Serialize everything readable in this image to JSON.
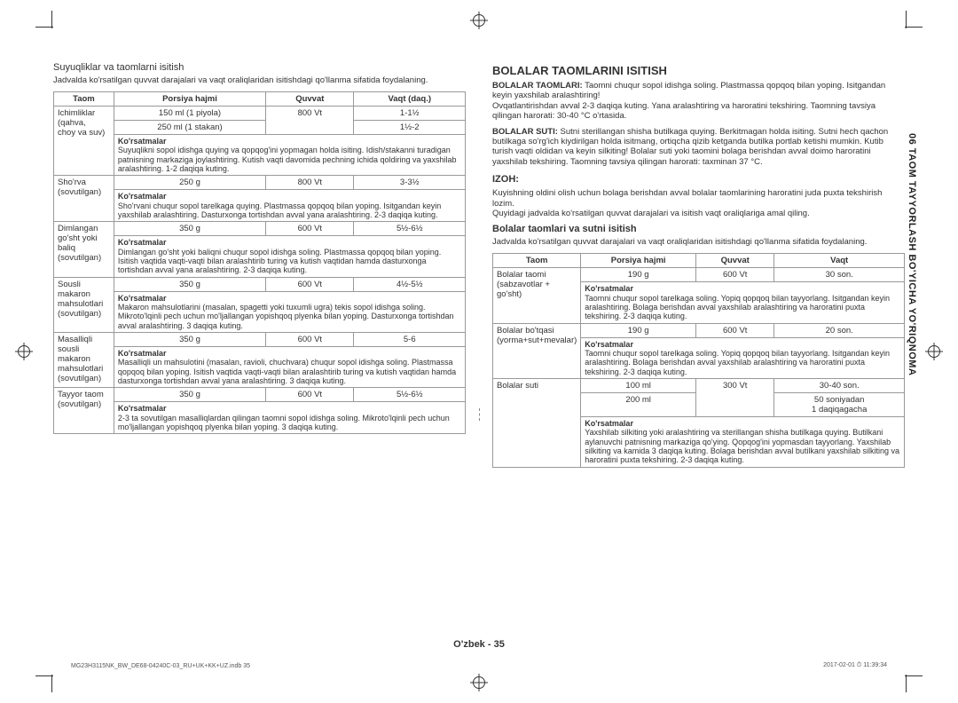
{
  "cropmarks": true,
  "left": {
    "title": "Suyuqliklar va taomlarni isitish",
    "intro": "Jadvalda ko'rsatilgan quvvat darajalari va vaqt oraliqlaridan isitishdagi qo'llanma sifatida foydalaning.",
    "headers": [
      "Taom",
      "Porsiya hajmi",
      "Quvvat",
      "Vaqt (daq.)"
    ],
    "rows": [
      {
        "name": "Ichimliklar (qahva,\nchoy va suv)",
        "portions": [
          "150 ml (1 piyola)",
          "250 ml (1 stakan)"
        ],
        "power": "800 Vt",
        "time": [
          "1-1½",
          "1½-2"
        ],
        "inst": "Suyuqlikni sopol idishga quying va qopqog'ini yopmagan holda isiting. Idish/stakanni turadigan patnisning markaziga joylashtiring. Kutish vaqti davomida pechning ichida qoldiring va yaxshilab aralashtiring. 1-2 daqiqa kuting."
      },
      {
        "name": "Sho'rva\n(sovutilgan)",
        "portions": [
          "250 g"
        ],
        "power": "800 Vt",
        "time": [
          "3-3½"
        ],
        "inst": "Sho'rvani chuqur sopol tarelkaga quying. Plastmassa qopqoq bilan yoping. Isitgandan keyin yaxshilab aralashtiring. Dasturxonga tortishdan avval yana aralashtiring. 2-3 daqiqa kuting."
      },
      {
        "name": "Dimlangan\ngo'sht yoki baliq\n(sovutilgan)",
        "portions": [
          "350 g"
        ],
        "power": "600 Vt",
        "time": [
          "5½-6½"
        ],
        "inst": "Dimlangan go'sht yoki baliqni chuqur sopol idishga soling. Plastmassa qopqoq bilan yoping. Isitish vaqtida vaqti-vaqti bilan aralashtirib turing va kutish vaqtidan hamda dasturxonga tortishdan avval yana aralashtiring. 2-3 daqiqa kuting."
      },
      {
        "name": "Sousli makaron\nmahsulotlari\n(sovutilgan)",
        "portions": [
          "350 g"
        ],
        "power": "600 Vt",
        "time": [
          "4½-5½"
        ],
        "inst": "Makaron mahsulotlarini (masalan, spagetti yoki tuxumli ugra) tekis sopol idishga soling. Mikroto'lqinli pech uchun mo'ljallangan yopishqoq plyenka bilan yoping. Dasturxonga tortishdan avval aralashtiring. 3 daqiqa kuting."
      },
      {
        "name": "Masalliqli\nsousli makaron\nmahsulotlari\n(sovutilgan)",
        "portions": [
          "350 g"
        ],
        "power": "600 Vt",
        "time": [
          "5-6"
        ],
        "inst": "Masalliqli un mahsulotini (masalan, ravioli, chuchvara) chuqur sopol idishga soling. Plastmassa qopqoq bilan yoping. Isitish vaqtida vaqti-vaqti bilan aralashtirib turing va kutish vaqtidan hamda dasturxonga tortishdan avval yana aralashtiring. 3 daqiqa kuting."
      },
      {
        "name": "Tayyor taom\n(sovutilgan)",
        "portions": [
          "350 g"
        ],
        "power": "600 Vt",
        "time": [
          "5½-6½"
        ],
        "inst": "2-3 ta sovutilgan masalliqlardan qilingan taomni sopol idishga soling. Mikroto'lqinli pech uchun mo'ljallangan yopishqoq plyenka bilan yoping. 3 daqiqa kuting."
      }
    ],
    "inst_label": "Ko'rsatmalar"
  },
  "right": {
    "heading": "BOLALAR TAOMLARINI ISITISH",
    "para1_label": "BOLALAR TAOMLARI:",
    "para1": " Taomni chuqur sopol idishga soling. Plastmassa qopqoq bilan yoping. Isitgandan keyin yaxshilab aralashtiring!\nOvqatlantirishdan avval 2-3 daqiqa kuting. Yana aralashtiring va haroratini tekshiring. Taomning tavsiya qilingan harorati: 30-40 °C o'rtasida.",
    "para2_label": "BOLALAR SUTI:",
    "para2": " Sutni sterillangan shisha butilkaga quying. Berkitmagan holda isiting. Sutni hech qachon butilkaga so'rg'ich kiydirilgan holda isitmang, ortiqcha qizib ketganda butilka portlab ketishi mumkin. Kutib turish vaqti oldidan va keyin silkiting! Bolalar suti yoki taomini bolaga berishdan avval doimo haroratini yaxshilab tekshiring. Taomning tavsiya qilingan harorati: taxminan 37 °C.",
    "izoh_heading": "IZOH:",
    "izoh_text": "Kuyishning oldini olish uchun bolaga berishdan avval bolalar taomlarining haroratini juda puxta tekshirish lozim.\nQuyidagi jadvalda ko'rsatilgan quvvat darajalari va isitish vaqt oraliqlariga amal qiling.",
    "sub_title": "Bolalar taomlari va sutni isitish",
    "sub_intro": "Jadvalda ko'rsatilgan quvvat darajalari va vaqt oraliqlaridan isitishdagi qo'llanma sifatida foydalaning.",
    "headers": [
      "Taom",
      "Porsiya hajmi",
      "Quvvat",
      "Vaqt"
    ],
    "rows": [
      {
        "name": "Bolalar taomi\n(sabzavotlar +\ngo'sht)",
        "portions": [
          "190 g"
        ],
        "power": "600 Vt",
        "time": [
          "30 son."
        ],
        "inst": "Taomni chuqur sopol tarelkaga soling. Yopiq qopqoq bilan tayyorlang. Isitgandan keyin aralashtiring. Bolaga berishdan avval yaxshilab aralashtiring va haroratini puxta tekshiring. 2-3 daqiqa kuting."
      },
      {
        "name": "Bolalar bo'tqasi\n(yorma+sut+mevalar)",
        "portions": [
          "190 g"
        ],
        "power": "600 Vt",
        "time": [
          "20 son."
        ],
        "inst": "Taomni chuqur sopol tarelkaga soling. Yopiq qopqoq bilan tayyorlang. Isitgandan keyin aralashtiring. Bolaga berishdan avval yaxshilab aralashtiring va haroratini puxta tekshiring. 2-3 daqiqa kuting."
      },
      {
        "name": "Bolalar suti",
        "portions": [
          "100 ml",
          "200 ml"
        ],
        "power": "300 Vt",
        "time": [
          "30-40 son.",
          "50 soniyadan\n1 daqiqagacha"
        ],
        "inst": "Yaxshilab silkiting yoki aralashtiring va sterillangan shisha butilkaga quying. Butilkani aylanuvchi patnisning markaziga qo'ying. Qopqog'ini yopmasdan tayyorlang. Yaxshilab silkiting va kamida 3 daqiqa kuting. Bolaga berishdan avval butilkani yaxshilab silkiting va haroratini puxta tekshiring. 2-3 daqiqa kuting."
      }
    ],
    "inst_label": "Ko'rsatmalar"
  },
  "side_tab": "06  TAOM TAYYORLASH BO'YICHA YO'RIQNOMA",
  "page_label": "O'zbek - 35",
  "footer_left": "MG23H3115NK_BW_DE68-04240C-03_RU+UK+KK+UZ.indb   35",
  "footer_right": "2017-02-01   ⏱ 11:39:34"
}
